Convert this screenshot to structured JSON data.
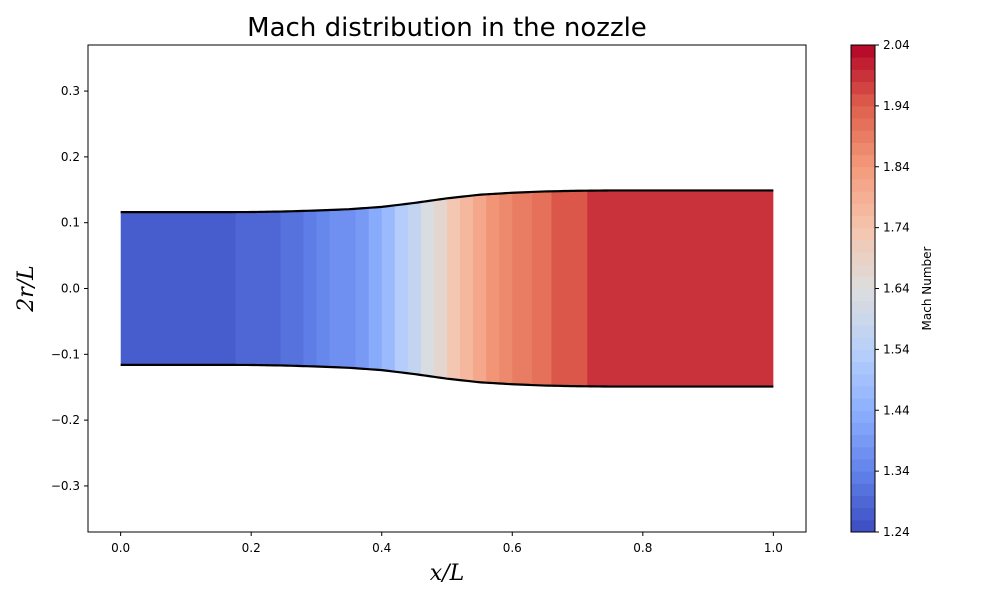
{
  "chart_data": {
    "type": "heatmap",
    "title": "Mach distribution in the nozzle",
    "xlabel": "x/L",
    "ylabel": "2r/L",
    "xlim": [
      -0.05,
      1.05
    ],
    "ylim": [
      -0.37,
      0.37
    ],
    "xticks": [
      0.0,
      0.2,
      0.4,
      0.6,
      0.8,
      1.0
    ],
    "xtick_labels": [
      "0.0",
      "0.2",
      "0.4",
      "0.6",
      "0.8",
      "1.0"
    ],
    "yticks": [
      -0.3,
      -0.2,
      -0.1,
      0.0,
      0.1,
      0.2,
      0.3
    ],
    "ytick_labels": [
      "−0.3",
      "−0.2",
      "−0.1",
      "0.0",
      "0.1",
      "0.2",
      "0.3"
    ],
    "grid": false,
    "colormap": "coolwarm",
    "colorbar": {
      "label": "Mach Number",
      "vmin": 1.24,
      "vmax": 2.04,
      "ticks": [
        1.24,
        1.34,
        1.44,
        1.54,
        1.64,
        1.74,
        1.84,
        1.94,
        2.04
      ],
      "tick_labels": [
        "1.24",
        "1.34",
        "1.44",
        "1.54",
        "1.64",
        "1.74",
        "1.84",
        "1.94",
        "2.04"
      ],
      "levels": 40
    },
    "wall_profile": {
      "x": [
        0.0,
        0.05,
        0.1,
        0.15,
        0.2,
        0.25,
        0.3,
        0.35,
        0.4,
        0.45,
        0.5,
        0.55,
        0.6,
        0.65,
        0.7,
        0.75,
        0.8,
        0.85,
        0.9,
        0.95,
        1.0
      ],
      "r": [
        0.116,
        0.116,
        0.116,
        0.116,
        0.1162,
        0.117,
        0.1185,
        0.1205,
        0.124,
        0.13,
        0.137,
        0.1425,
        0.1455,
        0.1475,
        0.1485,
        0.149,
        0.149,
        0.149,
        0.149,
        0.149,
        0.149
      ]
    },
    "mach_profile": {
      "x": [
        0.0,
        0.176,
        0.245,
        0.28,
        0.3,
        0.32,
        0.34,
        0.36,
        0.38,
        0.4,
        0.42,
        0.44,
        0.46,
        0.48,
        0.5,
        0.52,
        0.54,
        0.56,
        0.58,
        0.6,
        0.63,
        0.66,
        0.715,
        1.0
      ],
      "mach": [
        1.26,
        1.28,
        1.3,
        1.32,
        1.34,
        1.36,
        1.38,
        1.4,
        1.43,
        1.47,
        1.52,
        1.57,
        1.63,
        1.68,
        1.73,
        1.77,
        1.81,
        1.85,
        1.88,
        1.9,
        1.92,
        1.95,
        1.98,
        2.01
      ]
    }
  }
}
